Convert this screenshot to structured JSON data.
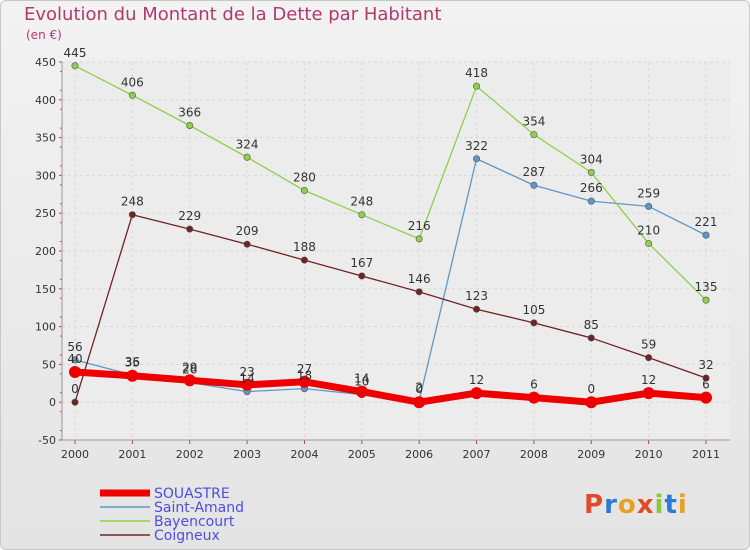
{
  "chart_data": {
    "type": "line",
    "title": "Evolution du Montant de la Dette par Habitant",
    "unit": "(en €)",
    "x": [
      "2000",
      "2001",
      "2002",
      "2003",
      "2004",
      "2005",
      "2006",
      "2007",
      "2008",
      "2009",
      "2010",
      "2011"
    ],
    "ylim": [
      -50,
      450
    ],
    "yticks": [
      -50,
      0,
      50,
      100,
      150,
      200,
      250,
      300,
      350,
      400,
      450
    ],
    "grid": true,
    "legend_position": "bottom-left",
    "series": [
      {
        "name": "SOUASTRE",
        "color": "#ee0000",
        "values": [
          40,
          35,
          29,
          23,
          27,
          14,
          0,
          12,
          6,
          0,
          12,
          6
        ]
      },
      {
        "name": "Saint-Amand",
        "color": "#5e98c8",
        "values": [
          56,
          36,
          26,
          14,
          18,
          10,
          2,
          322,
          287,
          266,
          259,
          221
        ]
      },
      {
        "name": "Bayencourt",
        "color": "#8ed04a",
        "values": [
          445,
          406,
          366,
          324,
          280,
          248,
          216,
          418,
          354,
          304,
          210,
          135
        ]
      },
      {
        "name": "Coigneux",
        "color": "#6e2424",
        "values": [
          0,
          248,
          229,
          209,
          188,
          167,
          146,
          123,
          105,
          85,
          59,
          32
        ]
      }
    ]
  },
  "branding": {
    "logo_text": "Proxiti"
  }
}
